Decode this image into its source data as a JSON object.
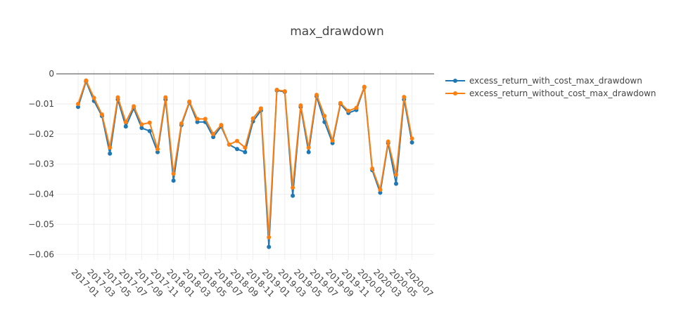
{
  "chart_data": {
    "type": "line",
    "title": "max_drawdown",
    "xlabel": "",
    "ylabel": "",
    "x": [
      "2017-01",
      "2017-02",
      "2017-03",
      "2017-04",
      "2017-05",
      "2017-06",
      "2017-07",
      "2017-08",
      "2017-09",
      "2017-10",
      "2017-11",
      "2017-12",
      "2018-01",
      "2018-02",
      "2018-03",
      "2018-04",
      "2018-05",
      "2018-06",
      "2018-07",
      "2018-08",
      "2018-09",
      "2018-10",
      "2018-11",
      "2018-12",
      "2019-01",
      "2019-02",
      "2019-03",
      "2019-04",
      "2019-05",
      "2019-06",
      "2019-07",
      "2019-08",
      "2019-09",
      "2019-10",
      "2019-11",
      "2019-12",
      "2020-01",
      "2020-02",
      "2020-03",
      "2020-04",
      "2020-05",
      "2020-06",
      "2020-07"
    ],
    "x_ticks": [
      "2017-01",
      "2017-03",
      "2017-05",
      "2017-07",
      "2017-09",
      "2017-11",
      "2018-01",
      "2018-03",
      "2018-05",
      "2018-07",
      "2018-09",
      "2018-11",
      "2019-01",
      "2019-03",
      "2019-05",
      "2019-07",
      "2019-09",
      "2019-11",
      "2020-01",
      "2020-03",
      "2020-05",
      "2020-07"
    ],
    "y_ticks": [
      0,
      -0.01,
      -0.02,
      -0.03,
      -0.04,
      -0.05,
      -0.06
    ],
    "y_tick_labels": [
      "0",
      "−0.01",
      "−0.02",
      "−0.03",
      "−0.04",
      "−0.05",
      "−0.06"
    ],
    "ylim": [
      -0.0618,
      0.0012
    ],
    "grid": true,
    "legend_position": "top-right",
    "series": [
      {
        "name": "excess_return_with_cost_max_drawdown",
        "color": "#1f77b4",
        "values": [
          -0.011,
          -0.0025,
          -0.009,
          -0.014,
          -0.0265,
          -0.0085,
          -0.0175,
          -0.0115,
          -0.018,
          -0.019,
          -0.026,
          -0.0085,
          -0.0355,
          -0.017,
          -0.0095,
          -0.016,
          -0.016,
          -0.021,
          -0.0175,
          -0.0235,
          -0.025,
          -0.026,
          -0.0158,
          -0.0122,
          -0.0575,
          -0.0055,
          -0.006,
          -0.0405,
          -0.011,
          -0.026,
          -0.0075,
          -0.016,
          -0.023,
          -0.01,
          -0.013,
          -0.012,
          -0.0045,
          -0.032,
          -0.0395,
          -0.023,
          -0.0365,
          -0.0085,
          -0.0228
        ]
      },
      {
        "name": "excess_return_without_cost_max_drawdown",
        "color": "#ff7f0e",
        "values": [
          -0.01,
          -0.0022,
          -0.008,
          -0.0135,
          -0.0245,
          -0.0078,
          -0.016,
          -0.0108,
          -0.0168,
          -0.0162,
          -0.025,
          -0.0078,
          -0.0332,
          -0.0165,
          -0.0092,
          -0.015,
          -0.015,
          -0.02,
          -0.017,
          -0.0235,
          -0.0223,
          -0.0245,
          -0.0148,
          -0.0115,
          -0.0543,
          -0.0053,
          -0.0058,
          -0.0378,
          -0.0105,
          -0.0245,
          -0.007,
          -0.014,
          -0.0222,
          -0.0097,
          -0.0123,
          -0.0113,
          -0.0043,
          -0.0315,
          -0.0385,
          -0.0225,
          -0.0335,
          -0.0077,
          -0.0215
        ]
      }
    ]
  }
}
